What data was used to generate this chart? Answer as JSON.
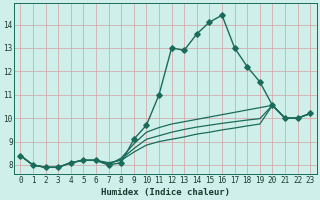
{
  "xlabel": "Humidex (Indice chaleur)",
  "background_color": "#cff0ea",
  "grid_color": "#d4a0a0",
  "line_color": "#1a6b5a",
  "xlim": [
    -0.5,
    23.5
  ],
  "ylim": [
    7.6,
    14.9
  ],
  "xticks": [
    0,
    1,
    2,
    3,
    4,
    5,
    6,
    7,
    8,
    9,
    10,
    11,
    12,
    13,
    14,
    15,
    16,
    17,
    18,
    19,
    20,
    21,
    22,
    23
  ],
  "yticks": [
    8,
    9,
    10,
    11,
    12,
    13,
    14
  ],
  "series": [
    {
      "x": [
        0,
        1,
        2,
        3,
        4,
        5,
        6,
        7,
        8,
        9,
        10,
        11,
        12,
        13,
        14,
        15,
        16,
        17,
        18,
        19,
        20,
        21,
        22,
        23
      ],
      "y": [
        8.4,
        8.0,
        7.9,
        7.9,
        8.1,
        8.2,
        8.2,
        8.0,
        8.1,
        9.1,
        9.7,
        11.0,
        13.0,
        12.9,
        13.6,
        14.1,
        14.4,
        13.0,
        12.2,
        11.55,
        10.55,
        10.0,
        10.0,
        10.2
      ],
      "marker": "D",
      "markersize": 2.8,
      "linewidth": 1.0
    },
    {
      "x": [
        0,
        1,
        2,
        3,
        4,
        5,
        6,
        7,
        8,
        9,
        10,
        11,
        12,
        13,
        14,
        15,
        16,
        17,
        18,
        19,
        20,
        21,
        22,
        23
      ],
      "y": [
        8.4,
        8.0,
        7.9,
        7.9,
        8.1,
        8.2,
        8.2,
        8.0,
        8.3,
        8.9,
        9.4,
        9.6,
        9.75,
        9.85,
        9.95,
        10.05,
        10.15,
        10.25,
        10.35,
        10.45,
        10.55,
        10.0,
        10.0,
        10.2
      ],
      "marker": null,
      "linewidth": 0.9
    },
    {
      "x": [
        0,
        1,
        2,
        3,
        4,
        5,
        6,
        7,
        8,
        9,
        10,
        11,
        12,
        13,
        14,
        15,
        16,
        17,
        18,
        19,
        20,
        21,
        22,
        23
      ],
      "y": [
        8.4,
        8.0,
        7.9,
        7.9,
        8.1,
        8.2,
        8.2,
        8.05,
        8.25,
        8.7,
        9.1,
        9.25,
        9.4,
        9.52,
        9.62,
        9.7,
        9.78,
        9.85,
        9.92,
        9.98,
        10.55,
        10.0,
        10.0,
        10.2
      ],
      "marker": null,
      "linewidth": 0.9
    },
    {
      "x": [
        0,
        1,
        2,
        3,
        4,
        5,
        6,
        7,
        8,
        9,
        10,
        11,
        12,
        13,
        14,
        15,
        16,
        17,
        18,
        19,
        20,
        21,
        22,
        23
      ],
      "y": [
        8.4,
        8.0,
        7.9,
        7.9,
        8.1,
        8.2,
        8.2,
        8.1,
        8.2,
        8.55,
        8.85,
        9.0,
        9.1,
        9.2,
        9.32,
        9.4,
        9.5,
        9.58,
        9.67,
        9.75,
        10.55,
        10.0,
        10.0,
        10.2
      ],
      "marker": null,
      "linewidth": 0.9
    }
  ]
}
